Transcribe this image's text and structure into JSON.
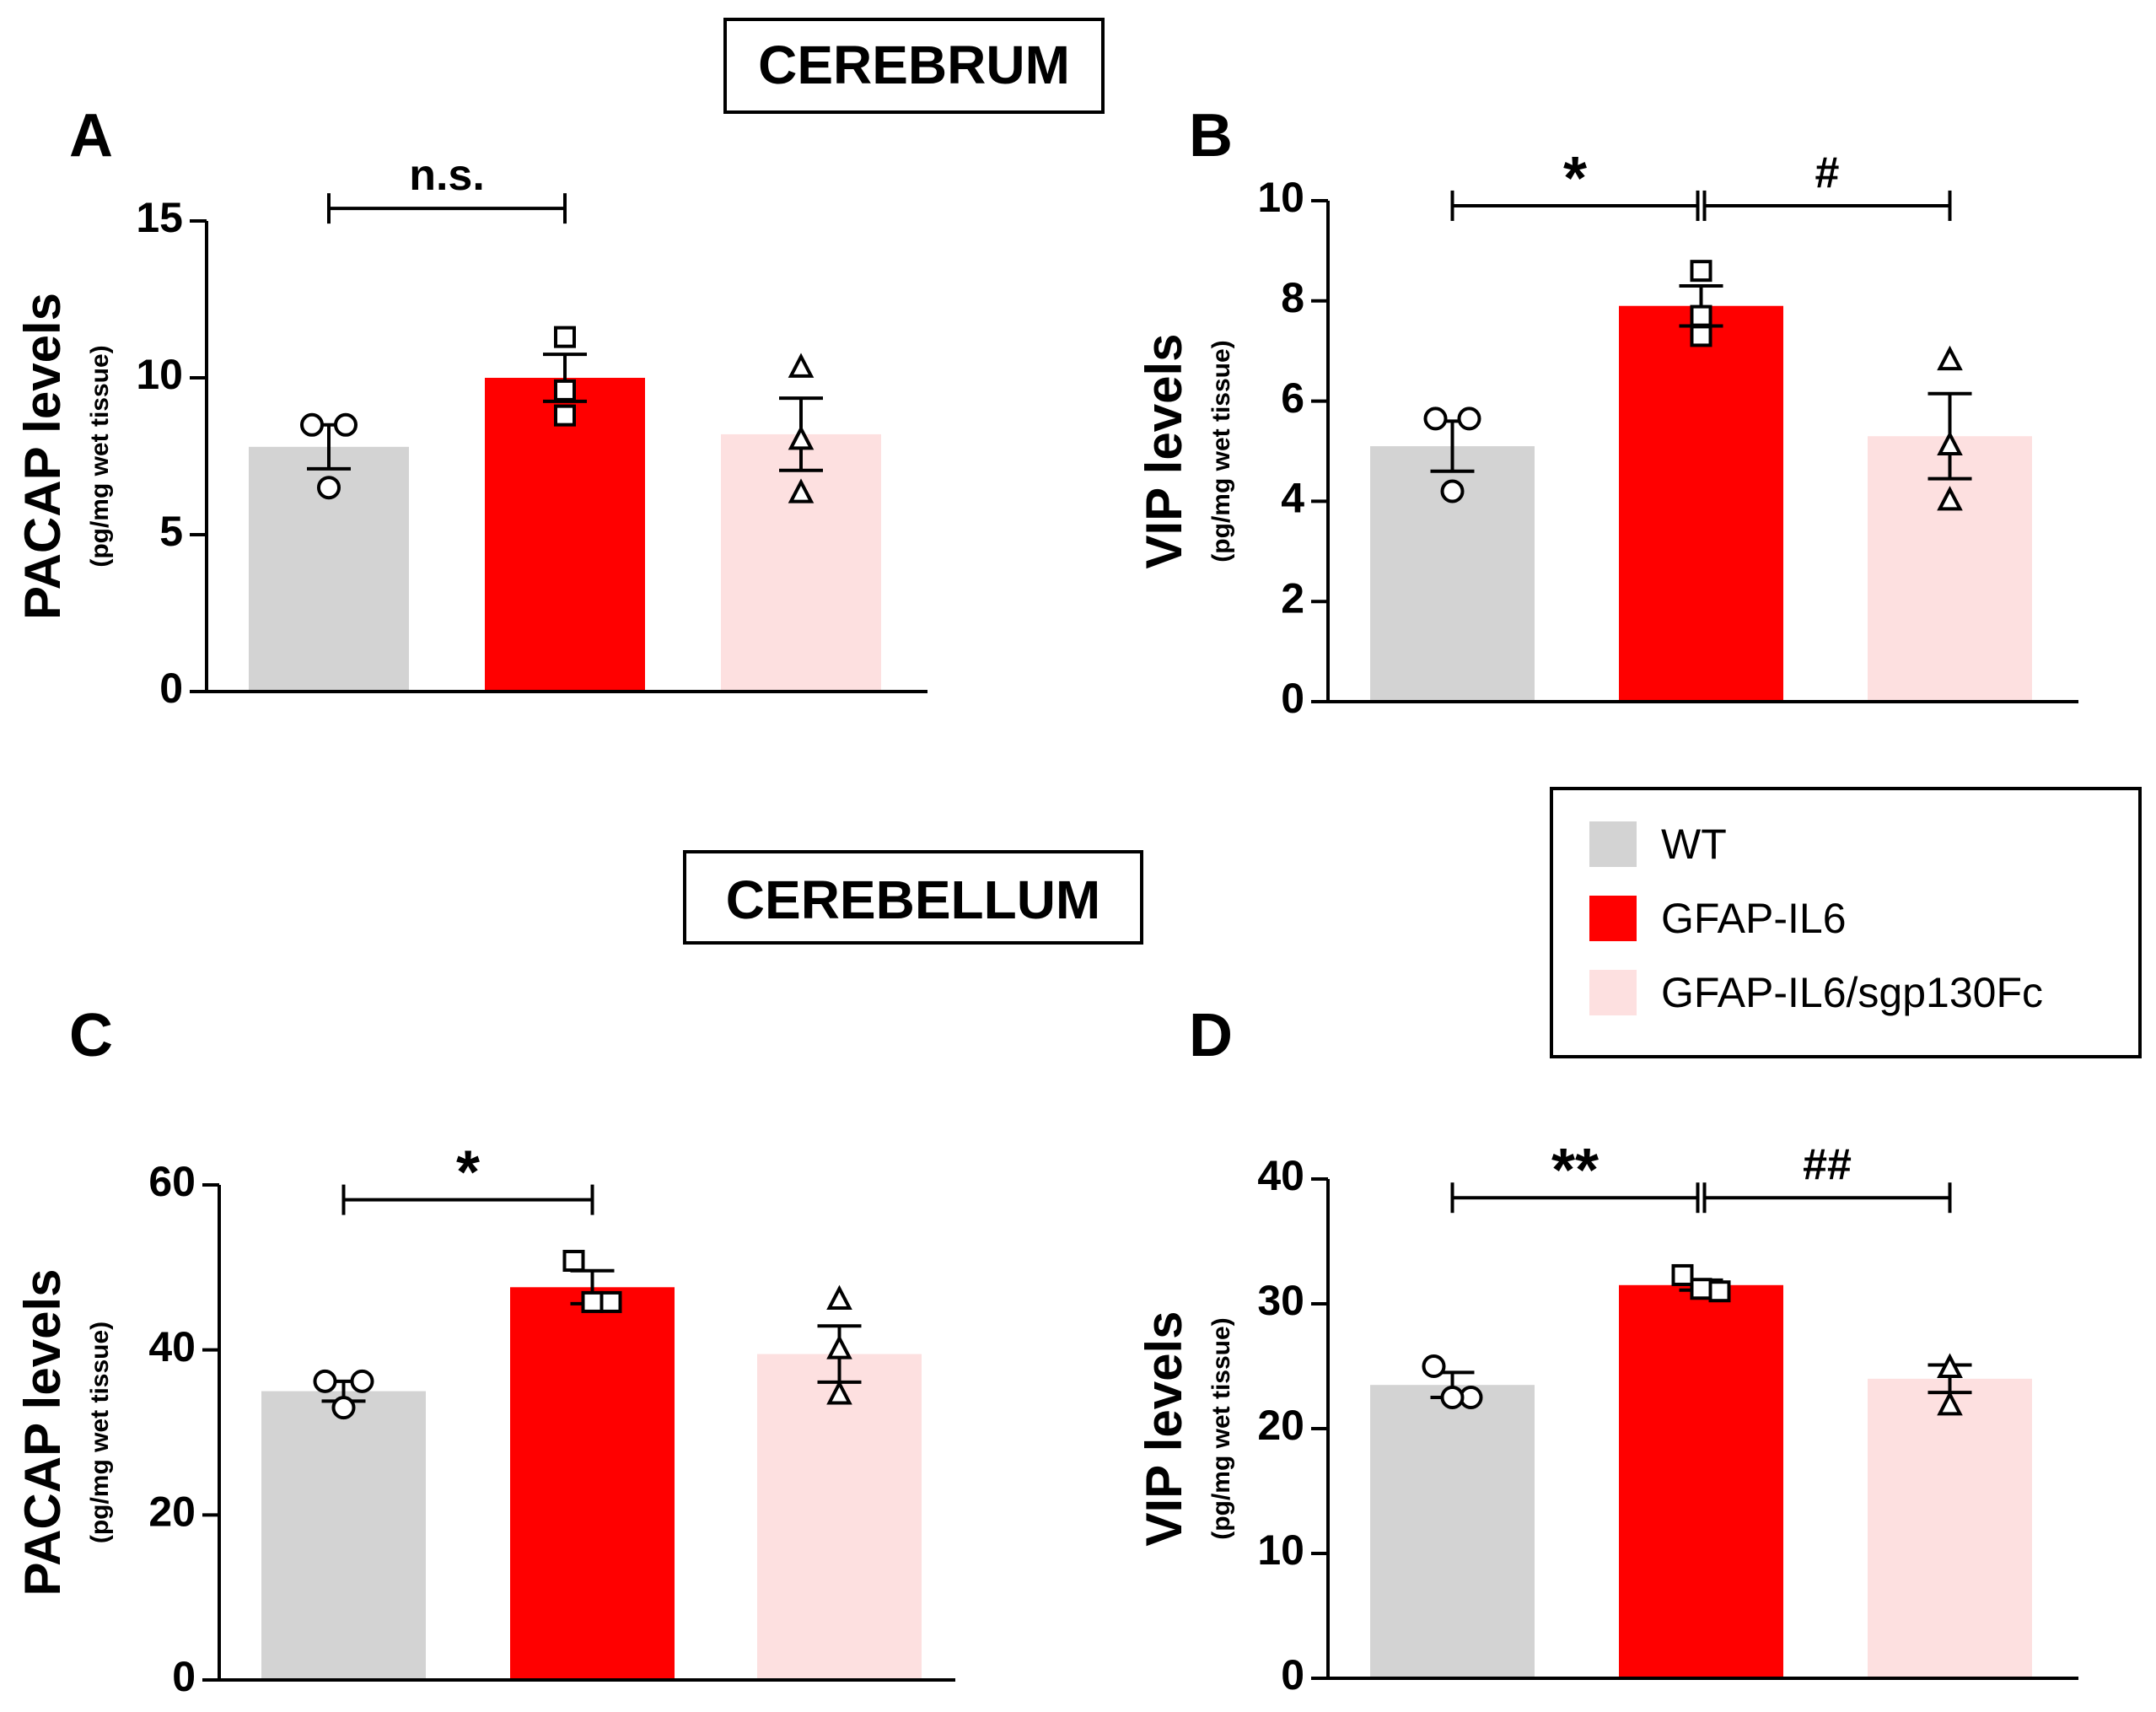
{
  "section_titles": {
    "cerebrum": "CEREBRUM",
    "cerebellum": "CEREBELLUM"
  },
  "legend": {
    "items": [
      {
        "label": "WT",
        "color": "#d3d3d3"
      },
      {
        "label": "GFAP-IL6",
        "color": "#ff0000"
      },
      {
        "label": "GFAP-IL6/sgp130Fc",
        "color": "#fde0e0"
      }
    ]
  },
  "chart_data": [
    {
      "panel": "A",
      "type": "bar",
      "ylabel": "PACAP levels",
      "ylabel_unit": "(pg/mg wet tissue)",
      "ylim": [
        0,
        15
      ],
      "yticks": [
        0,
        5,
        10,
        15
      ],
      "categories": [
        "WT",
        "GFAP-IL6",
        "GFAP-IL6/sgp130Fc"
      ],
      "values": [
        7.8,
        10.0,
        8.2
      ],
      "errors": [
        0.7,
        0.75,
        1.15
      ],
      "points": [
        [
          8.5,
          8.5,
          6.5
        ],
        [
          11.3,
          9.6,
          8.8
        ],
        [
          10.3,
          8.0,
          6.3
        ]
      ],
      "markers": [
        "circle",
        "square",
        "triangle"
      ],
      "significance": [
        {
          "from": 0,
          "to": 1,
          "label": "n.s.",
          "y": 15.4
        }
      ]
    },
    {
      "panel": "B",
      "type": "bar",
      "ylabel": "VIP levels",
      "ylabel_unit": "(pg/mg wet tissue)",
      "ylim": [
        0,
        10
      ],
      "yticks": [
        0,
        2,
        4,
        6,
        8,
        10
      ],
      "categories": [
        "WT",
        "GFAP-IL6",
        "GFAP-IL6/sgp130Fc"
      ],
      "values": [
        5.1,
        7.9,
        5.3
      ],
      "errors": [
        0.5,
        0.4,
        0.85
      ],
      "points": [
        [
          5.65,
          5.65,
          4.2
        ],
        [
          8.6,
          7.7,
          7.3
        ],
        [
          6.8,
          5.1,
          4.0
        ]
      ],
      "markers": [
        "circle",
        "square",
        "triangle"
      ],
      "significance": [
        {
          "from": 0,
          "to": 1,
          "label": "*",
          "y": 9.9
        },
        {
          "from": 1,
          "to": 2,
          "label": "#",
          "y": 9.9
        }
      ]
    },
    {
      "panel": "C",
      "type": "bar",
      "ylabel": "PACAP levels",
      "ylabel_unit": "(pg/mg wet tissue)",
      "ylim": [
        0,
        60
      ],
      "yticks": [
        0,
        20,
        40,
        60
      ],
      "categories": [
        "WT",
        "GFAP-IL6",
        "GFAP-IL6/sgp130Fc"
      ],
      "values": [
        35.0,
        47.6,
        39.5
      ],
      "errors": [
        1.2,
        2.0,
        3.4
      ],
      "points": [
        [
          36.2,
          36.2,
          33.0
        ],
        [
          50.8,
          45.8,
          45.8
        ],
        [
          46.0,
          40.0,
          34.5
        ]
      ],
      "markers": [
        "circle",
        "square",
        "triangle"
      ],
      "significance": [
        {
          "from": 0,
          "to": 1,
          "label": "*",
          "y": 58.2
        }
      ]
    },
    {
      "panel": "D",
      "type": "bar",
      "ylabel": "VIP levels",
      "ylabel_unit": "(pg/mg wet tissue)",
      "ylim": [
        0,
        40
      ],
      "yticks": [
        0,
        10,
        20,
        30,
        40
      ],
      "categories": [
        "WT",
        "GFAP-IL6",
        "GFAP-IL6/sgp130Fc"
      ],
      "values": [
        23.5,
        31.5,
        24.0
      ],
      "errors": [
        1.0,
        0.4,
        1.1
      ],
      "points": [
        [
          25.0,
          22.5,
          22.5
        ],
        [
          32.3,
          31.0,
          31.2
        ],
        [
          24.8,
          24.8,
          21.8
        ]
      ],
      "markers": [
        "circle",
        "square",
        "triangle"
      ],
      "significance": [
        {
          "from": 0,
          "to": 1,
          "label": "**",
          "y": 38.5
        },
        {
          "from": 1,
          "to": 2,
          "label": "##",
          "y": 38.5
        }
      ]
    }
  ]
}
